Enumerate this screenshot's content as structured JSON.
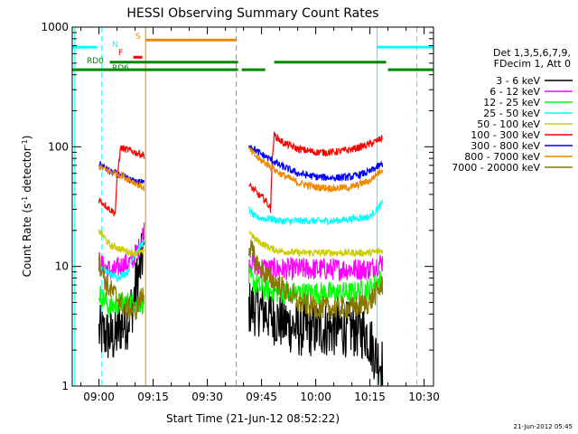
{
  "chart_data": {
    "type": "line",
    "title": "HESSI Observing Summary Count Rates",
    "xlabel": "Start Time (21-Jun-12 08:52:22)",
    "ylabel_parts": [
      "Count Rate (s",
      "-1",
      " detector",
      "-1",
      ")"
    ],
    "ylog": true,
    "ylim": [
      1,
      1000
    ],
    "ytick_labels": [
      "1",
      "10",
      "100",
      "1000"
    ],
    "xlim_minutes": [
      -7.4,
      92.6
    ],
    "xtick_labels": [
      "09:00",
      "09:15",
      "09:30",
      "09:45",
      "10:00",
      "10:15",
      "10:30"
    ],
    "xtick_minutes": [
      0,
      15,
      30,
      45,
      60,
      75,
      90
    ],
    "legend_title": [
      "Det 1,3,5,6,7,9,",
      "FDecim 1, Att 0"
    ],
    "series": [
      {
        "name": "3 - 6 keV",
        "color": "#000000",
        "segments": [
          {
            "t": [
              0,
              4.5,
              6,
              8,
              9.5,
              11.5,
              12.5
            ],
            "y": [
              2.8,
              2.5,
              3.2,
              3.5,
              5,
              10,
              14
            ]
          },
          {
            "t": [
              41.5,
              44,
              47,
              50,
              55,
              60,
              65,
              70,
              74,
              76.5,
              78.5
            ],
            "y": [
              4.5,
              4.5,
              4,
              3.5,
              3,
              3,
              3,
              3,
              2.8,
              1.8,
              1.5
            ]
          }
        ]
      },
      {
        "name": "6 - 12 keV",
        "color": "#ff00ff",
        "segments": [
          {
            "t": [
              0,
              1,
              4,
              6,
              9,
              11,
              12.5
            ],
            "y": [
              11,
              10,
              9,
              10,
              11,
              14,
              20
            ]
          },
          {
            "t": [
              41.5,
              44,
              47,
              50,
              55,
              60,
              65,
              70,
              75,
              78.5
            ],
            "y": [
              11,
              10,
              9.5,
              9.5,
              9.5,
              9.5,
              9.5,
              9.5,
              9.5,
              11
            ]
          }
        ]
      },
      {
        "name": "12 - 25 keV",
        "color": "#00ff00",
        "segments": [
          {
            "t": [
              0,
              3,
              6,
              9,
              12.5
            ],
            "y": [
              6,
              4.5,
              5,
              5,
              5
            ]
          },
          {
            "t": [
              41.5,
              45,
              50,
              55,
              60,
              65,
              70,
              75,
              78.5
            ],
            "y": [
              8,
              6.5,
              6,
              6,
              6,
              6,
              6,
              6.5,
              8
            ]
          }
        ]
      },
      {
        "name": "25 - 50 keV",
        "color": "#00ffff",
        "segments": [
          {
            "t": [
              0,
              2,
              5,
              8,
              10,
              12.5
            ],
            "y": [
              10,
              9,
              8,
              9,
              13,
              16
            ]
          },
          {
            "t": [
              41.5,
              43,
              46,
              48,
              50,
              55,
              60,
              65,
              70,
              75,
              77,
              78.5
            ],
            "y": [
              30,
              26,
              25,
              25,
              24,
              24,
              24,
              24,
              25,
              26,
              30,
              34
            ]
          }
        ]
      },
      {
        "name": "50 - 100 keV",
        "color": "#cccc00",
        "segments": [
          {
            "t": [
              0,
              3,
              6,
              9,
              12.5
            ],
            "y": [
              20,
              15,
              14,
              13,
              13
            ]
          },
          {
            "t": [
              41.5,
              43,
              46,
              48,
              50,
              55,
              60,
              70,
              75,
              78.5
            ],
            "y": [
              20,
              17,
              15,
              14,
              13.5,
              13,
              13,
              13,
              13,
              13.5
            ]
          }
        ]
      },
      {
        "name": "100 - 300 keV",
        "color": "#ff0000",
        "segments": [
          {
            "t": [
              0,
              3,
              4.5,
              6,
              9,
              12.5
            ],
            "y": [
              36,
              30,
              28,
              98,
              92,
              85
            ]
          },
          {
            "t": [
              41.5,
              44,
              46,
              47.5,
              48.5,
              51,
              55,
              60,
              65,
              70,
              75,
              78.5
            ],
            "y": [
              48,
              40,
              36,
              30,
              125,
              108,
              96,
              90,
              90,
              95,
              105,
              118
            ]
          }
        ]
      },
      {
        "name": "300 - 800 keV",
        "color": "#0000ff",
        "segments": [
          {
            "t": [
              0,
              3,
              6,
              9,
              12.5
            ],
            "y": [
              72,
              62,
              58,
              52,
              50
            ]
          },
          {
            "t": [
              41.5,
              44,
              47,
              50,
              55,
              60,
              65,
              70,
              75,
              78.5
            ],
            "y": [
              105,
              90,
              80,
              70,
              60,
              56,
              55,
              56,
              62,
              72
            ]
          }
        ]
      },
      {
        "name": "800 - 7000 keV",
        "color": "#ee8800",
        "segments": [
          {
            "t": [
              0,
              3,
              6,
              9,
              12.5
            ],
            "y": [
              68,
              62,
              58,
              52,
              45
            ]
          },
          {
            "t": [
              41.5,
              44,
              47,
              50,
              55,
              60,
              65,
              70,
              75,
              78.5
            ],
            "y": [
              95,
              80,
              70,
              60,
              50,
              46,
              45,
              46,
              52,
              65
            ]
          }
        ]
      },
      {
        "name": "7000 - 20000 keV",
        "color": "#887700",
        "segments": [
          {
            "t": [
              0,
              2,
              4,
              7,
              10,
              12.5
            ],
            "y": [
              11,
              7,
              6,
              4.5,
              4.2,
              6
            ]
          },
          {
            "t": [
              41.5,
              44,
              47,
              50,
              55,
              60,
              65,
              70,
              75,
              78.5
            ],
            "y": [
              15,
              10,
              8,
              7,
              5,
              4.5,
              4.5,
              4.5,
              5,
              7
            ]
          }
        ]
      }
    ],
    "vertical_lines": [
      {
        "t": -6.7,
        "color": "#00ffff",
        "dash": false
      },
      {
        "t": 0.8,
        "color": "#00ffff",
        "dash": true
      },
      {
        "t": 12.9,
        "color": "#ee8800",
        "dash": false
      },
      {
        "t": 38.0,
        "color": "#ee8800",
        "dash": true
      },
      {
        "t": 77.0,
        "color": "#00ffff",
        "dash": false
      },
      {
        "t": 88.0,
        "color": "#00ffff",
        "dash": true
      }
    ],
    "flag_bars": [
      {
        "label": "N",
        "color": "#00ffff",
        "segments": [
          [
            -7.4,
            -0.5
          ],
          [
            77,
            92.6
          ]
        ],
        "level": 680
      },
      {
        "label": "S",
        "color": "#ee8800",
        "segments": [
          [
            12.9,
            38
          ]
        ],
        "level": 780
      },
      {
        "label": "F",
        "color": "#ff0000",
        "segments": [
          [
            9.5,
            12
          ]
        ],
        "level": 560
      },
      {
        "label": "RD0",
        "color": "#008800",
        "segments": [
          [
            3,
            38.5
          ],
          [
            48.5,
            79.5
          ]
        ],
        "level": 510
      },
      {
        "label": "RD6",
        "color": "#008800",
        "segments": [
          [
            -7.4,
            38.5
          ],
          [
            39.5,
            46
          ],
          [
            80,
            92.6
          ]
        ],
        "level": 440
      }
    ]
  },
  "footer_date": "21-Jun-2012 05:45"
}
